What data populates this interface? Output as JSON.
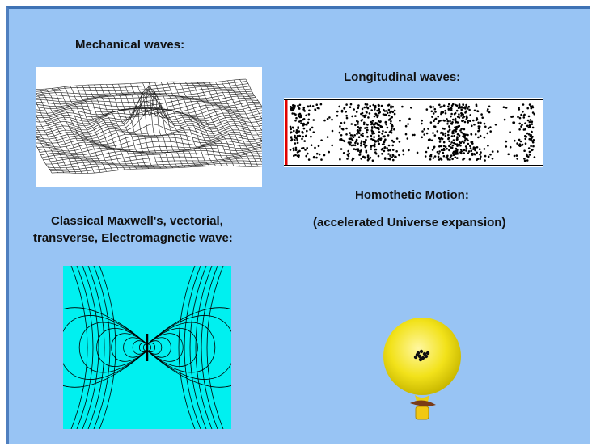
{
  "labels": {
    "mechanical": "Mechanical waves:",
    "longitudinal": "Longitudinal waves:",
    "homothetic": "Homothetic Motion:",
    "accelerated": "(accelerated Universe expansion)",
    "maxwell_line1": "Classical Maxwell's, vectorial,",
    "maxwell_line2": "transverse, Electromagnetic wave:"
  },
  "figures": {
    "mechanical": "wireframe-surface-wave",
    "longitudinal": "particle-density-tube",
    "electromagnetic": "dipole-field-lines",
    "homothetic": "expanding-balloon"
  },
  "colors": {
    "background": "#98c4f4",
    "border": "#3f73b5",
    "em_panel": "#00f0f0",
    "balloon": "#f2e21a",
    "tube_edge": "#e00000"
  }
}
